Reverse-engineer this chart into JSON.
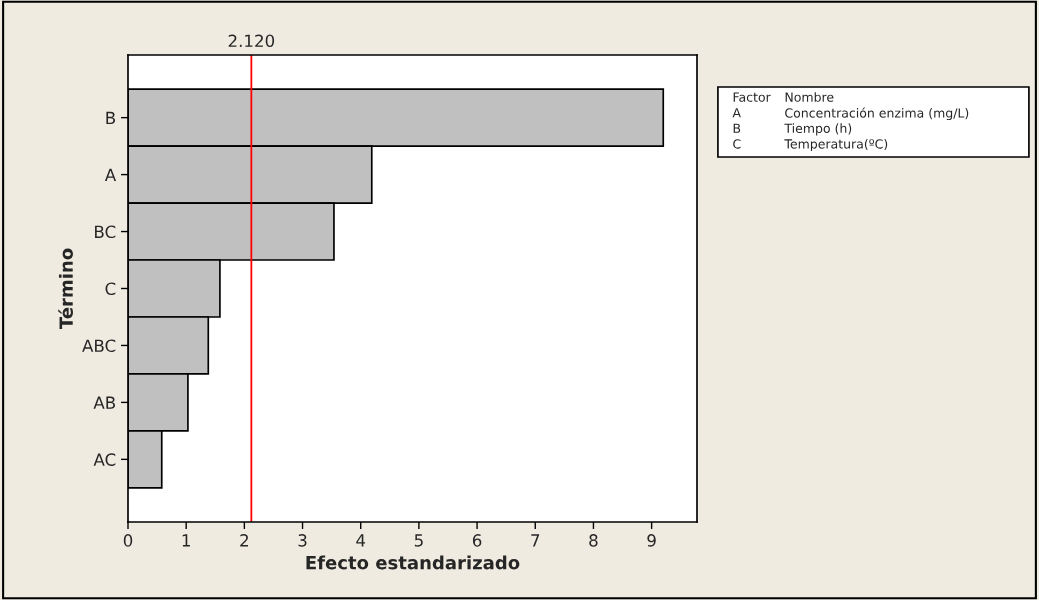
{
  "chart_data": {
    "type": "bar",
    "orientation": "horizontal",
    "xlabel": "Efecto estandarizado",
    "ylabel": "Término",
    "categories": [
      "B",
      "A",
      "BC",
      "C",
      "ABC",
      "AB",
      "AC"
    ],
    "values": [
      9.2,
      4.19,
      3.54,
      1.58,
      1.38,
      1.03,
      0.58
    ],
    "color": "#c0c0c0",
    "xlim": [
      0,
      9.78
    ],
    "xticks": [
      0,
      1,
      2,
      3,
      4,
      5,
      6,
      7,
      8,
      9
    ],
    "ref_lines": [
      {
        "axis": "x",
        "value": 2.12,
        "label": "2.120",
        "color": "#ff0000"
      }
    ],
    "grid": false,
    "annotations": [
      "Factor",
      "Nombre",
      "A",
      "Concentración enzima (mg/L)",
      "B",
      "Tiempo (h)",
      "C",
      "Temperatura(ºC)"
    ]
  }
}
